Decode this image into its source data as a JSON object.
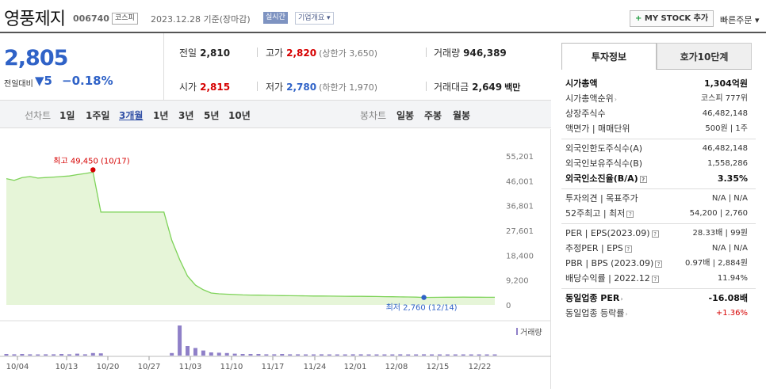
{
  "header": {
    "stock_name": "영풍제지",
    "stock_code": "006740",
    "market": "코스피",
    "date_text": "2023.12.28 기준(장마감)",
    "realtime_label": "실시간",
    "overview_label": "기업개요 ▾",
    "mystock_plus": "+",
    "mystock_label": "MY STOCK 추가",
    "quick_order": "빠른주문 ▾"
  },
  "price": {
    "current": "2,805",
    "diff_label": "전일대비",
    "diff_value": "▼5",
    "diff_pct": "−0.18%"
  },
  "stats": {
    "prev_label": "전일",
    "prev_value": "2,810",
    "high_label": "고가",
    "high_value": "2,820",
    "high_sub": "(상한가 3,650)",
    "volume_label": "거래량",
    "volume_value": "946,389",
    "open_label": "시가",
    "open_value": "2,815",
    "low_label": "저가",
    "low_value": "2,780",
    "low_sub": "(하한가 1,970)",
    "amount_label": "거래대금",
    "amount_value": "2,649",
    "amount_unit": "백만"
  },
  "periods": {
    "line_label": "선차트",
    "items": [
      "1일",
      "1주일",
      "3개월",
      "1년",
      "3년",
      "5년",
      "10년"
    ],
    "active": "3개월",
    "candle_label": "봉차트",
    "candle_items": [
      "일봉",
      "주봉",
      "월봉"
    ]
  },
  "chart_data": {
    "type": "area",
    "x": [
      "09/27",
      "09/28",
      "09/29",
      "10/04",
      "10/05",
      "10/06",
      "10/10",
      "10/11",
      "10/12",
      "10/13",
      "10/16",
      "10/17",
      "10/18",
      "10/19",
      "10/20",
      "10/23",
      "10/24",
      "10/25",
      "10/26",
      "10/27",
      "10/30",
      "10/31",
      "11/01",
      "11/02",
      "11/03",
      "11/06",
      "11/07",
      "11/08",
      "11/09",
      "11/10",
      "11/13",
      "11/14",
      "11/15",
      "11/16",
      "11/17",
      "11/20",
      "11/21",
      "11/22",
      "11/23",
      "11/24",
      "11/27",
      "11/28",
      "11/29",
      "11/30",
      "12/01",
      "12/04",
      "12/05",
      "12/06",
      "12/07",
      "12/08",
      "12/11",
      "12/12",
      "12/13",
      "12/14",
      "12/15",
      "12/18",
      "12/19",
      "12/20",
      "12/21",
      "12/22",
      "12/26",
      "12/27",
      "12/28"
    ],
    "close": [
      46800,
      46200,
      47200,
      47600,
      47000,
      47200,
      47400,
      47600,
      47800,
      48300,
      48700,
      49200,
      34400,
      34400,
      34400,
      34400,
      34400,
      34400,
      34400,
      34400,
      34400,
      24000,
      16800,
      10700,
      7300,
      5600,
      4400,
      4100,
      3950,
      3850,
      3700,
      3650,
      3600,
      3550,
      3500,
      3450,
      3400,
      3380,
      3340,
      3300,
      3280,
      3250,
      3220,
      3200,
      3180,
      3160,
      3140,
      3100,
      3060,
      3020,
      2980,
      2940,
      2880,
      2760,
      2800,
      2830,
      2850,
      2860,
      2870,
      2860,
      2840,
      2810,
      2805
    ],
    "volume": [
      0.5,
      0.4,
      0.5,
      0.4,
      0.3,
      0.4,
      0.4,
      0.5,
      0.4,
      0.6,
      0.4,
      0.8,
      0.7,
      0,
      0,
      0,
      0,
      0,
      0,
      0,
      0,
      0.8,
      9.5,
      3.0,
      2.4,
      1.6,
      1.0,
      0.9,
      0.8,
      0.6,
      0.5,
      0.5,
      0.5,
      0.4,
      0.4,
      0.5,
      0.4,
      0.4,
      0.3,
      0.3,
      0.4,
      0.3,
      0.3,
      0.3,
      0.4,
      0.4,
      0.3,
      0.3,
      0.3,
      0.3,
      0.4,
      0.3,
      0.3,
      0.4,
      0.3,
      0.3,
      0.3,
      0.3,
      0.3,
      0.3,
      0.3,
      0.3,
      0.3
    ],
    "yticks": [
      "55,201",
      "46,001",
      "36,801",
      "27,601",
      "18,400",
      "9,200",
      "0"
    ],
    "ylim": [
      0,
      55201
    ],
    "xticks": [
      "10/04",
      "10/13",
      "10/20",
      "10/27",
      "11/03",
      "11/10",
      "11/17",
      "11/24",
      "12/01",
      "12/08",
      "12/15",
      "12/22"
    ],
    "high_label": "최고 49,450 (10/17)",
    "low_label": "최저 2,760 (12/14)",
    "volume_legend": "거래량",
    "line_color": "#7fd35a",
    "fill_color": "#e6f5d8",
    "volume_color": "#8f80c8",
    "high_color": "#d60000",
    "low_color": "#2f62c7"
  },
  "invest": {
    "tab_on": "투자정보",
    "tab_off": "호가10단계",
    "rows1": [
      {
        "k": "시가총액",
        "v": "1,304억원",
        "bold": true
      },
      {
        "k": "시가총액순위",
        "v": "코스피 777위",
        "arrow": true
      },
      {
        "k": "상장주식수",
        "v": "46,482,148"
      },
      {
        "k": "액면가 | 매매단위",
        "v": "500원 | 1주"
      }
    ],
    "rows2": [
      {
        "k": "외국인한도주식수(A)",
        "v": "46,482,148"
      },
      {
        "k": "외국인보유주식수(B)",
        "v": "1,558,286"
      },
      {
        "k": "외국인소진율(B/A)",
        "v": "3.35%",
        "bold": true,
        "q": true
      }
    ],
    "rows3": [
      {
        "k": "투자의견 | 목표주가",
        "v": "N/A | N/A"
      },
      {
        "k": "52주최고 | 최저",
        "v": "54,200 | 2,760",
        "q": true
      }
    ],
    "rows4": [
      {
        "k": "PER | EPS(2023.09)",
        "v": "28.33배 | 99원",
        "q": true
      },
      {
        "k": "추정PER | EPS",
        "v": "N/A | N/A",
        "q": true
      },
      {
        "k": "PBR | BPS (2023.09)",
        "v": "0.97배 | 2,884원",
        "q": true
      },
      {
        "k": "배당수익률 | 2022.12",
        "v": "11.94%",
        "q": true
      }
    ],
    "rows5": [
      {
        "k": "동일업종 PER",
        "v": "-16.08배",
        "bold": true,
        "arrow": true
      },
      {
        "k": "동일업종 등락률",
        "v": "+1.36%",
        "red": true,
        "arrow": true
      }
    ]
  }
}
